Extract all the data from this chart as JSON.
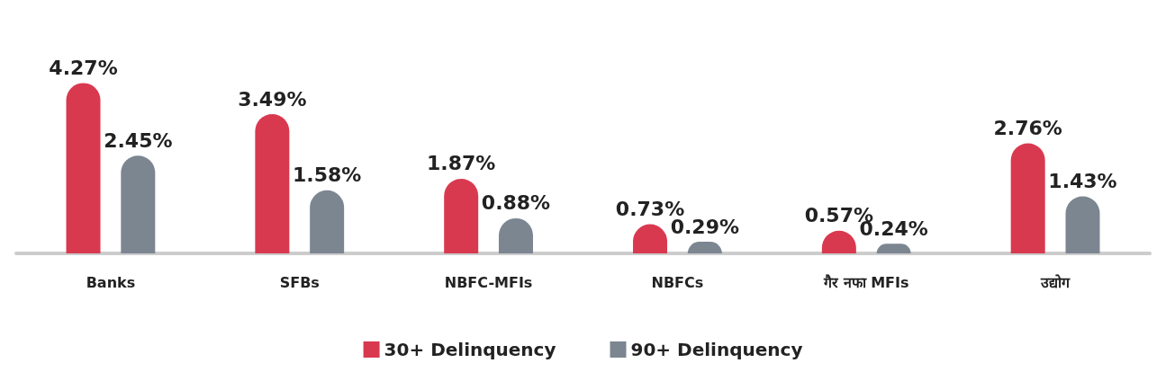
{
  "chart_data": {
    "type": "bar",
    "categories": [
      "Banks",
      "SFBs",
      "NBFC-MFIs",
      "NBFCs",
      "गैर नफा MFIs",
      "उद्योग"
    ],
    "series": [
      {
        "name": "30+ Delinquency",
        "color": "#d9394f",
        "values": [
          4.27,
          3.49,
          1.87,
          0.73,
          0.57,
          2.76
        ],
        "value_labels": [
          "4.27%",
          "3.49%",
          "1.87%",
          "0.73%",
          "0.57%",
          "2.76%"
        ]
      },
      {
        "name": "90+ Delinquency",
        "color": "#7b8691",
        "values": [
          2.45,
          1.58,
          0.88,
          0.29,
          0.24,
          1.43
        ],
        "value_labels": [
          "2.45%",
          "1.58%",
          "0.88%",
          "0.29%",
          "0.24%",
          "1.43%"
        ]
      }
    ],
    "legend": "bottom"
  }
}
